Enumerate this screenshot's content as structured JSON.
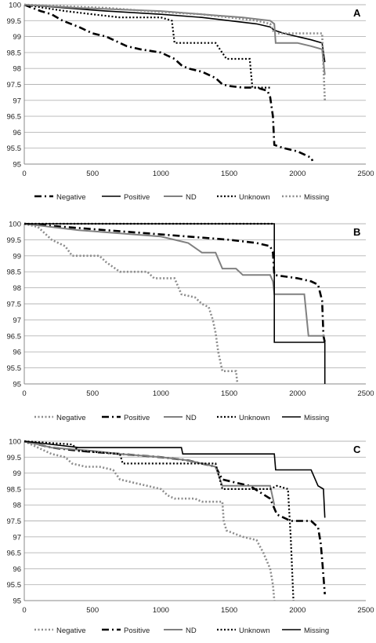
{
  "chart_data": [
    {
      "type": "line",
      "panel_label": "A",
      "xlim": [
        0,
        2500
      ],
      "ylim": [
        95,
        100
      ],
      "x_ticks": [
        "0",
        "500",
        "1000",
        "1500",
        "2000",
        "2500"
      ],
      "y_ticks": [
        "95",
        "95.5",
        "96",
        "96.5",
        "97",
        "97.5",
        "98",
        "98.5",
        "99",
        "99.5",
        "100"
      ],
      "grid": true,
      "legend_position": "bottom",
      "series": [
        {
          "name": "Negative",
          "style": "dashdot-black",
          "points": [
            [
              0,
              100
            ],
            [
              120,
              99.8
            ],
            [
              200,
              99.7
            ],
            [
              280,
              99.5
            ],
            [
              400,
              99.3
            ],
            [
              500,
              99.1
            ],
            [
              600,
              99.0
            ],
            [
              700,
              98.8
            ],
            [
              750,
              98.7
            ],
            [
              850,
              98.6
            ],
            [
              1000,
              98.5
            ],
            [
              1050,
              98.4
            ],
            [
              1100,
              98.3
            ],
            [
              1150,
              98.1
            ],
            [
              1200,
              98.0
            ],
            [
              1300,
              97.9
            ],
            [
              1400,
              97.7
            ],
            [
              1450,
              97.5
            ],
            [
              1500,
              97.45
            ],
            [
              1600,
              97.4
            ],
            [
              1700,
              97.4
            ],
            [
              1780,
              97.3
            ],
            [
              1800,
              97.1
            ],
            [
              1820,
              96.5
            ],
            [
              1830,
              95.6
            ],
            [
              1900,
              95.5
            ],
            [
              2000,
              95.4
            ],
            [
              2100,
              95.2
            ],
            [
              2110,
              95.1
            ]
          ]
        },
        {
          "name": "Positive",
          "style": "solid-black",
          "points": [
            [
              0,
              100
            ],
            [
              300,
              99.9
            ],
            [
              600,
              99.8
            ],
            [
              1000,
              99.7
            ],
            [
              1300,
              99.6
            ],
            [
              1500,
              99.5
            ],
            [
              1700,
              99.4
            ],
            [
              1800,
              99.3
            ],
            [
              1830,
              99.2
            ],
            [
              1900,
              99.1
            ],
            [
              2000,
              99.0
            ],
            [
              2100,
              98.9
            ],
            [
              2180,
              98.8
            ],
            [
              2200,
              98.2
            ]
          ]
        },
        {
          "name": "ND",
          "style": "solid-gray",
          "points": [
            [
              0,
              100
            ],
            [
              400,
              99.9
            ],
            [
              700,
              99.85
            ],
            [
              1000,
              99.8
            ],
            [
              1300,
              99.7
            ],
            [
              1600,
              99.6
            ],
            [
              1800,
              99.5
            ],
            [
              1830,
              99.4
            ],
            [
              1840,
              98.8
            ],
            [
              2000,
              98.8
            ],
            [
              2100,
              98.7
            ],
            [
              2180,
              98.6
            ],
            [
              2200,
              97.8
            ]
          ]
        },
        {
          "name": "Unknown",
          "style": "dotted-black",
          "points": [
            [
              0,
              100
            ],
            [
              150,
              99.9
            ],
            [
              300,
              99.8
            ],
            [
              500,
              99.7
            ],
            [
              700,
              99.6
            ],
            [
              1000,
              99.6
            ],
            [
              1080,
              99.5
            ],
            [
              1100,
              98.8
            ],
            [
              1400,
              98.8
            ],
            [
              1480,
              98.3
            ],
            [
              1650,
              98.3
            ],
            [
              1670,
              97.4
            ],
            [
              1800,
              97.4
            ]
          ]
        },
        {
          "name": "Missing",
          "style": "dotted-gray",
          "points": [
            [
              0,
              100
            ],
            [
              600,
              99.9
            ],
            [
              900,
              99.8
            ],
            [
              1100,
              99.75
            ],
            [
              1300,
              99.7
            ],
            [
              1500,
              99.6
            ],
            [
              1700,
              99.5
            ],
            [
              1800,
              99.4
            ],
            [
              1830,
              99.1
            ],
            [
              2000,
              99.1
            ],
            [
              2180,
              99.1
            ],
            [
              2200,
              97.0
            ]
          ]
        }
      ]
    },
    {
      "type": "line",
      "panel_label": "B",
      "xlim": [
        0,
        2500
      ],
      "ylim": [
        95,
        100
      ],
      "x_ticks": [
        "0",
        "500",
        "1000",
        "1500",
        "2000",
        "2500"
      ],
      "y_ticks": [
        "95",
        "95.5",
        "96",
        "96.5",
        "97",
        "97.5",
        "98",
        "98.5",
        "99",
        "99.5",
        "100"
      ],
      "grid": true,
      "legend_position": "bottom",
      "series": [
        {
          "name": "Negative",
          "style": "dotted-gray",
          "points": [
            [
              0,
              100
            ],
            [
              100,
              99.9
            ],
            [
              150,
              99.7
            ],
            [
              200,
              99.5
            ],
            [
              300,
              99.3
            ],
            [
              350,
              99.0
            ],
            [
              550,
              99.0
            ],
            [
              600,
              98.8
            ],
            [
              700,
              98.5
            ],
            [
              900,
              98.5
            ],
            [
              950,
              98.3
            ],
            [
              1100,
              98.3
            ],
            [
              1150,
              97.8
            ],
            [
              1250,
              97.7
            ],
            [
              1300,
              97.5
            ],
            [
              1350,
              97.4
            ],
            [
              1380,
              97.0
            ],
            [
              1400,
              96.6
            ],
            [
              1420,
              96.0
            ],
            [
              1450,
              95.4
            ],
            [
              1550,
              95.4
            ],
            [
              1560,
              95.0
            ]
          ]
        },
        {
          "name": "Positive",
          "style": "dashdot-black",
          "points": [
            [
              0,
              100
            ],
            [
              300,
              99.9
            ],
            [
              600,
              99.8
            ],
            [
              900,
              99.7
            ],
            [
              1200,
              99.6
            ],
            [
              1500,
              99.5
            ],
            [
              1700,
              99.4
            ],
            [
              1800,
              99.3
            ],
            [
              1820,
              99.1
            ],
            [
              1830,
              98.4
            ],
            [
              2000,
              98.3
            ],
            [
              2100,
              98.2
            ],
            [
              2150,
              98.1
            ],
            [
              2180,
              97.6
            ],
            [
              2190,
              96.5
            ],
            [
              2200,
              96.3
            ]
          ]
        },
        {
          "name": "ND",
          "style": "solid-gray",
          "points": [
            [
              0,
              100
            ],
            [
              200,
              99.9
            ],
            [
              400,
              99.8
            ],
            [
              700,
              99.7
            ],
            [
              1000,
              99.6
            ],
            [
              1100,
              99.5
            ],
            [
              1200,
              99.4
            ],
            [
              1300,
              99.1
            ],
            [
              1400,
              99.1
            ],
            [
              1450,
              98.6
            ],
            [
              1550,
              98.6
            ],
            [
              1600,
              98.4
            ],
            [
              1800,
              98.4
            ],
            [
              1820,
              98.2
            ],
            [
              1830,
              97.8
            ],
            [
              2000,
              97.8
            ],
            [
              2050,
              97.8
            ],
            [
              2080,
              96.5
            ],
            [
              2200,
              96.5
            ]
          ]
        },
        {
          "name": "Unknown",
          "style": "dotted-black",
          "points": [
            [
              0,
              100
            ],
            [
              1830,
              100
            ]
          ]
        },
        {
          "name": "Missing",
          "style": "solid-black",
          "points": [
            [
              0,
              100
            ],
            [
              1830,
              100
            ],
            [
              1830,
              96.3
            ],
            [
              2200,
              96.3
            ],
            [
              2200,
              95.0
            ]
          ]
        }
      ]
    },
    {
      "type": "line",
      "panel_label": "C",
      "xlim": [
        0,
        2500
      ],
      "ylim": [
        95,
        100
      ],
      "x_ticks": [
        "0",
        "500",
        "1000",
        "1500",
        "2000",
        "2500"
      ],
      "y_ticks": [
        "95",
        "95.5",
        "96",
        "96.5",
        "97",
        "97.5",
        "98",
        "98.5",
        "99",
        "99.5",
        "100"
      ],
      "grid": true,
      "legend_position": "bottom",
      "series": [
        {
          "name": "Negative",
          "style": "dotted-gray",
          "points": [
            [
              0,
              100
            ],
            [
              100,
              99.8
            ],
            [
              200,
              99.6
            ],
            [
              300,
              99.5
            ],
            [
              350,
              99.3
            ],
            [
              450,
              99.2
            ],
            [
              550,
              99.2
            ],
            [
              650,
              99.1
            ],
            [
              700,
              98.8
            ],
            [
              800,
              98.7
            ],
            [
              900,
              98.6
            ],
            [
              1000,
              98.5
            ],
            [
              1050,
              98.3
            ],
            [
              1100,
              98.2
            ],
            [
              1250,
              98.2
            ],
            [
              1300,
              98.1
            ],
            [
              1450,
              98.1
            ],
            [
              1460,
              97.5
            ],
            [
              1480,
              97.2
            ],
            [
              1600,
              97.0
            ],
            [
              1700,
              96.9
            ],
            [
              1750,
              96.5
            ],
            [
              1780,
              96.2
            ],
            [
              1800,
              96.0
            ],
            [
              1820,
              95.5
            ],
            [
              1830,
              95.0
            ]
          ]
        },
        {
          "name": "Positive",
          "style": "dashdot-black",
          "points": [
            [
              0,
              100
            ],
            [
              200,
              99.8
            ],
            [
              400,
              99.7
            ],
            [
              700,
              99.6
            ],
            [
              1000,
              99.5
            ],
            [
              1200,
              99.4
            ],
            [
              1400,
              99.2
            ],
            [
              1450,
              98.8
            ],
            [
              1550,
              98.7
            ],
            [
              1650,
              98.6
            ],
            [
              1800,
              98.2
            ],
            [
              1850,
              97.7
            ],
            [
              1900,
              97.6
            ],
            [
              1950,
              97.5
            ],
            [
              2100,
              97.5
            ],
            [
              2150,
              97.3
            ],
            [
              2170,
              96.8
            ],
            [
              2180,
              96.3
            ],
            [
              2200,
              95.2
            ]
          ]
        },
        {
          "name": "ND",
          "style": "solid-gray",
          "points": [
            [
              0,
              100
            ],
            [
              200,
              99.8
            ],
            [
              500,
              99.7
            ],
            [
              700,
              99.6
            ],
            [
              1000,
              99.5
            ],
            [
              1200,
              99.4
            ],
            [
              1400,
              99.2
            ],
            [
              1450,
              98.6
            ],
            [
              1800,
              98.6
            ],
            [
              1830,
              98.0
            ]
          ]
        },
        {
          "name": "Unknown",
          "style": "dotted-black",
          "points": [
            [
              0,
              100
            ],
            [
              350,
              99.9
            ],
            [
              400,
              99.7
            ],
            [
              700,
              99.6
            ],
            [
              720,
              99.3
            ],
            [
              1400,
              99.3
            ],
            [
              1450,
              98.5
            ],
            [
              1800,
              98.5
            ],
            [
              1850,
              98.6
            ],
            [
              1930,
              98.5
            ],
            [
              1950,
              97.0
            ],
            [
              1970,
              95.0
            ]
          ]
        },
        {
          "name": "Missing",
          "style": "solid-black",
          "points": [
            [
              0,
              100
            ],
            [
              400,
              99.8
            ],
            [
              1150,
              99.8
            ],
            [
              1160,
              99.6
            ],
            [
              1830,
              99.6
            ],
            [
              1840,
              99.1
            ],
            [
              2100,
              99.1
            ],
            [
              2150,
              98.6
            ],
            [
              2190,
              98.5
            ],
            [
              2200,
              97.6
            ]
          ]
        }
      ]
    }
  ]
}
